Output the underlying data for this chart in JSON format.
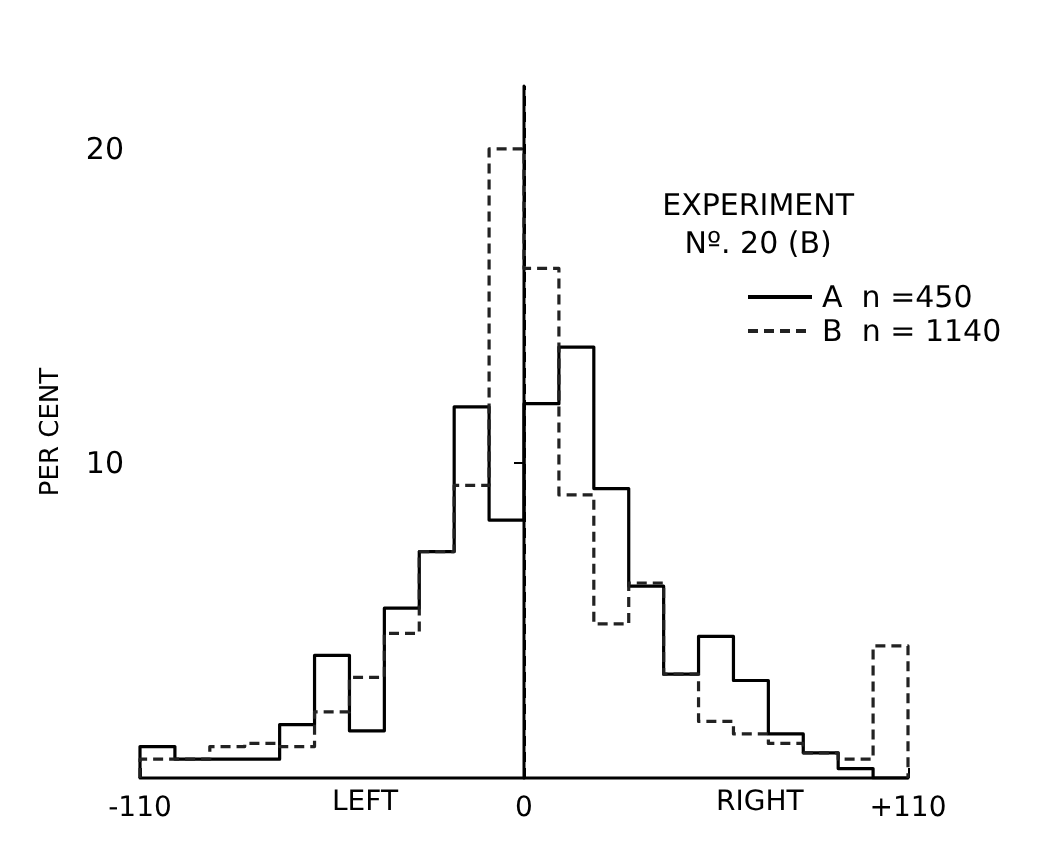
{
  "chart_data": {
    "type": "histogram",
    "title": "EXPERIMENT\nNº. 20 (B)",
    "ylabel": "PER CENT",
    "bins": [
      -110,
      -100,
      -90,
      -80,
      -70,
      -60,
      -50,
      -40,
      -30,
      -20,
      -10,
      0,
      10,
      20,
      30,
      40,
      50,
      60,
      70,
      80,
      90,
      100,
      110
    ],
    "series": [
      {
        "name": "A  n =450",
        "color": "#000000",
        "line_style": "solid",
        "values": [
          1.0,
          0.6,
          0.6,
          0.6,
          1.7,
          3.9,
          1.5,
          5.4,
          7.2,
          11.8,
          8.2,
          11.9,
          13.7,
          9.2,
          6.1,
          3.3,
          4.5,
          3.1,
          1.4,
          0.8,
          0.3,
          0
        ]
      },
      {
        "name": "B  n = 1140",
        "color": "#222222",
        "line_style": "dashed",
        "values": [
          0.6,
          0.6,
          1.0,
          1.1,
          1.0,
          2.1,
          3.2,
          4.6,
          7.2,
          9.3,
          20.0,
          16.2,
          9.0,
          4.9,
          6.2,
          3.3,
          1.8,
          1.4,
          1.1,
          0.8,
          0.6,
          4.2
        ]
      }
    ],
    "xlim": [
      -110,
      110
    ],
    "ylim": [
      0,
      22
    ],
    "xticks": [
      {
        "value": -110,
        "label": "-110"
      },
      0,
      {
        "value": 110,
        "label": "+110"
      }
    ],
    "annotations": [
      "LEFT",
      "RIGHT"
    ],
    "yticks": [
      10,
      20
    ],
    "ref_lines": [
      {
        "axis": "x",
        "value": 0,
        "label": null,
        "line_style": "dashed",
        "color": "#000000"
      }
    ],
    "legend": "top right",
    "grid": false
  }
}
